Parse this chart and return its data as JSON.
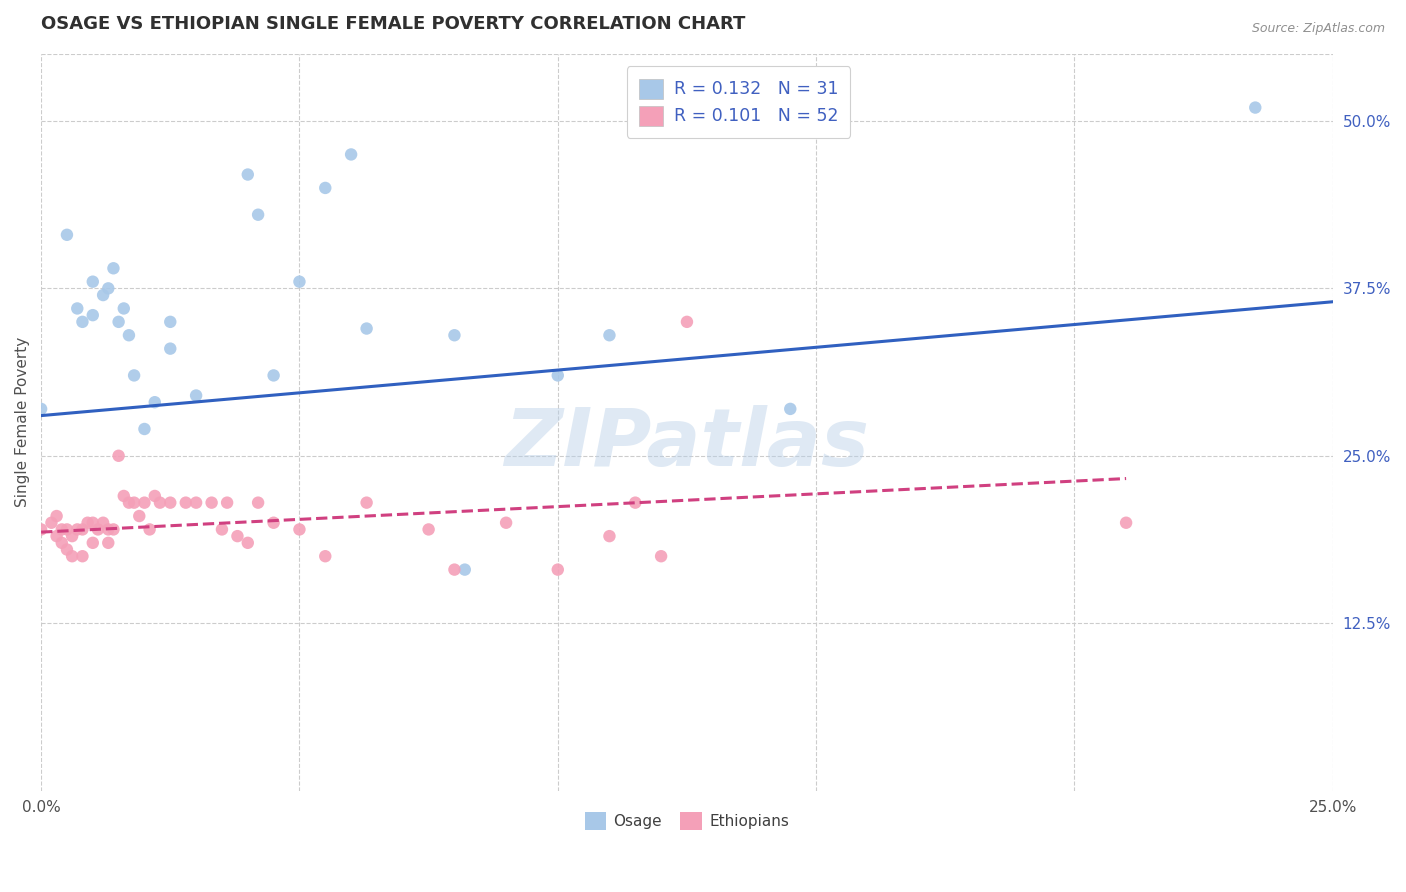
{
  "title": "OSAGE VS ETHIOPIAN SINGLE FEMALE POVERTY CORRELATION CHART",
  "source_text": "Source: ZipAtlas.com",
  "ylabel": "Single Female Poverty",
  "xlim": [
    0.0,
    0.25
  ],
  "ylim": [
    0.0,
    0.55
  ],
  "x_ticks": [
    0.0,
    0.05,
    0.1,
    0.15,
    0.2,
    0.25
  ],
  "x_tick_labels": [
    "0.0%",
    "",
    "",
    "",
    "",
    "25.0%"
  ],
  "y_ticks_right": [
    0.125,
    0.25,
    0.375,
    0.5
  ],
  "y_tick_labels_right": [
    "12.5%",
    "25.0%",
    "37.5%",
    "50.0%"
  ],
  "osage_color": "#a8c8e8",
  "ethiopian_color": "#f4a0b8",
  "blue_line_color": "#3060c0",
  "pink_line_color": "#d04080",
  "legend_label1": "Osage",
  "legend_label2": "Ethiopians",
  "watermark": "ZIPatlas",
  "osage_x": [
    0.0,
    0.005,
    0.007,
    0.008,
    0.01,
    0.01,
    0.012,
    0.013,
    0.014,
    0.015,
    0.016,
    0.017,
    0.018,
    0.02,
    0.022,
    0.025,
    0.025,
    0.03,
    0.04,
    0.042,
    0.045,
    0.05,
    0.055,
    0.06,
    0.063,
    0.08,
    0.082,
    0.1,
    0.11,
    0.145,
    0.235
  ],
  "osage_y": [
    0.285,
    0.415,
    0.36,
    0.35,
    0.38,
    0.355,
    0.37,
    0.375,
    0.39,
    0.35,
    0.36,
    0.34,
    0.31,
    0.27,
    0.29,
    0.35,
    0.33,
    0.295,
    0.46,
    0.43,
    0.31,
    0.38,
    0.45,
    0.475,
    0.345,
    0.34,
    0.165,
    0.31,
    0.34,
    0.285,
    0.51
  ],
  "ethiopian_x": [
    0.0,
    0.002,
    0.003,
    0.003,
    0.004,
    0.004,
    0.005,
    0.005,
    0.006,
    0.006,
    0.007,
    0.008,
    0.008,
    0.009,
    0.01,
    0.01,
    0.011,
    0.012,
    0.013,
    0.013,
    0.014,
    0.015,
    0.016,
    0.017,
    0.018,
    0.019,
    0.02,
    0.021,
    0.022,
    0.023,
    0.025,
    0.028,
    0.03,
    0.033,
    0.035,
    0.036,
    0.038,
    0.04,
    0.042,
    0.045,
    0.05,
    0.055,
    0.063,
    0.075,
    0.08,
    0.09,
    0.1,
    0.11,
    0.115,
    0.12,
    0.125,
    0.21
  ],
  "ethiopian_y": [
    0.195,
    0.2,
    0.19,
    0.205,
    0.185,
    0.195,
    0.195,
    0.18,
    0.19,
    0.175,
    0.195,
    0.195,
    0.175,
    0.2,
    0.2,
    0.185,
    0.195,
    0.2,
    0.185,
    0.195,
    0.195,
    0.25,
    0.22,
    0.215,
    0.215,
    0.205,
    0.215,
    0.195,
    0.22,
    0.215,
    0.215,
    0.215,
    0.215,
    0.215,
    0.195,
    0.215,
    0.19,
    0.185,
    0.215,
    0.2,
    0.195,
    0.175,
    0.215,
    0.195,
    0.165,
    0.2,
    0.165,
    0.19,
    0.215,
    0.175,
    0.35,
    0.2
  ],
  "osage_line_x": [
    0.0,
    0.25
  ],
  "osage_line_y": [
    0.28,
    0.365
  ],
  "ethiopian_line_x": [
    0.0,
    0.21
  ],
  "ethiopian_line_y": [
    0.193,
    0.233
  ],
  "background_color": "#ffffff",
  "grid_color": "#cccccc",
  "title_color": "#303030",
  "title_fontsize": 13,
  "legend_text_color": "#4060c0",
  "legend_n_color": "#4060c0"
}
